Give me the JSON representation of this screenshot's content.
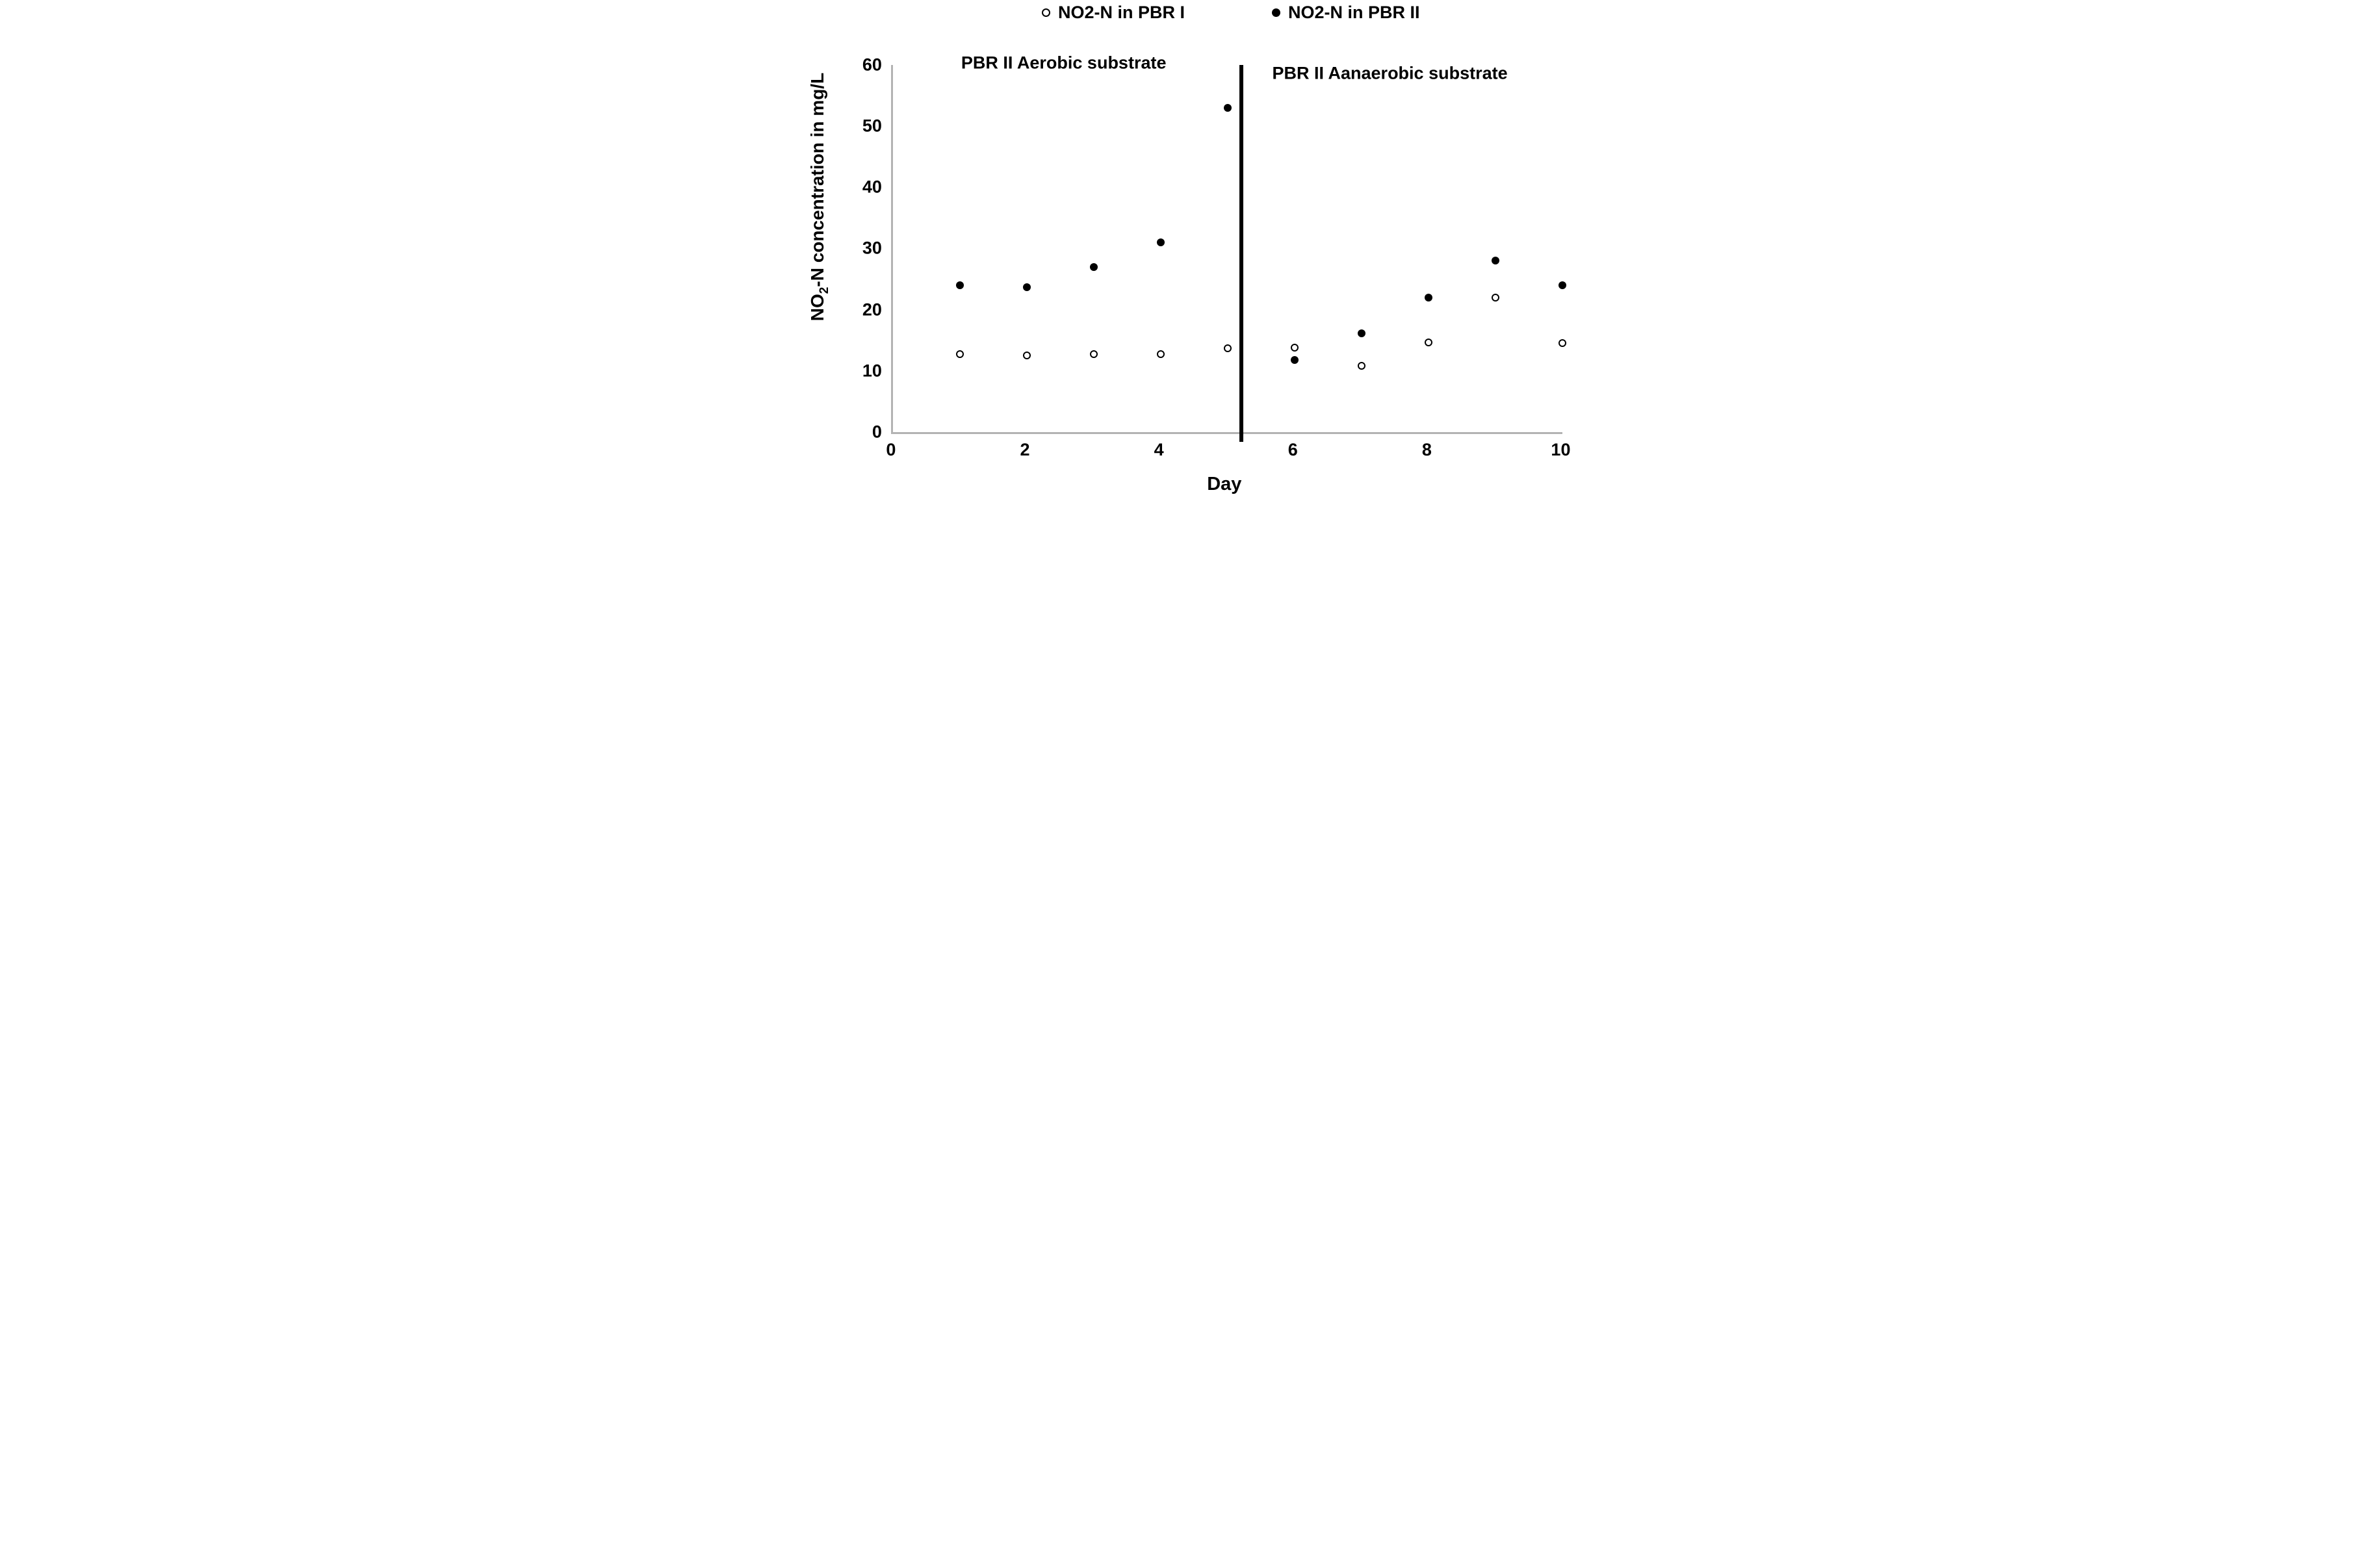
{
  "chart_data": {
    "type": "scatter",
    "title": "",
    "xlabel": "Day",
    "ylabel": "NO2-N concentration in mg/L",
    "xlim": [
      0,
      10
    ],
    "ylim": [
      0,
      60
    ],
    "x_ticks": [
      0,
      2,
      4,
      6,
      8,
      10
    ],
    "y_ticks": [
      0,
      10,
      20,
      30,
      40,
      50,
      60
    ],
    "grid": false,
    "legend_position": "top-center",
    "point_color": "#000000",
    "axis_color": "#b3b3b3",
    "text_color": "#000000",
    "x": [
      1,
      2,
      3,
      4,
      5,
      6,
      7,
      8,
      9,
      10
    ],
    "series": [
      {
        "name": "NO2-N in PBR I",
        "marker": "open-circle",
        "values": [
          12.7,
          12.5,
          12.7,
          12.7,
          13.7,
          13.8,
          10.8,
          14.7,
          22,
          14.6
        ]
      },
      {
        "name": "NO2-N in PBR II",
        "marker": "filled-circle",
        "values": [
          24,
          23.7,
          27,
          31,
          53,
          11.8,
          16.1,
          22,
          28,
          24
        ]
      }
    ],
    "divider_x": 5.2,
    "annotations": [
      {
        "text": "PBR II Aerobic substrate",
        "x": 2.55,
        "y": 60.3
      },
      {
        "text": "PBR II Aanaerobic substrate",
        "x": 7.42,
        "y": 58.6
      }
    ]
  },
  "y_title": {
    "pre": "NO",
    "sub": "2",
    "post": "-N concentration in mg/L"
  }
}
